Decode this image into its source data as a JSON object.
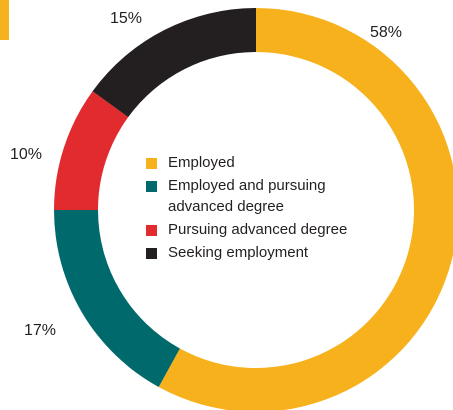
{
  "chart_data": {
    "type": "pie",
    "variant": "donut",
    "title": "",
    "slices": [
      {
        "label": "Employed",
        "value": 58,
        "display": "58%",
        "color": "#f6b11c"
      },
      {
        "label": "Employed and pursuing advanced degree",
        "value": 17,
        "display": "17%",
        "color": "#00696c"
      },
      {
        "label": "Pursuing advanced degree",
        "value": 10,
        "display": "10%",
        "color": "#e12b2e"
      },
      {
        "label": "Seeking employment",
        "value": 15,
        "display": "15%",
        "color": "#231f20"
      }
    ],
    "legend_placement": "center",
    "accent_color": "#f6b11c"
  }
}
